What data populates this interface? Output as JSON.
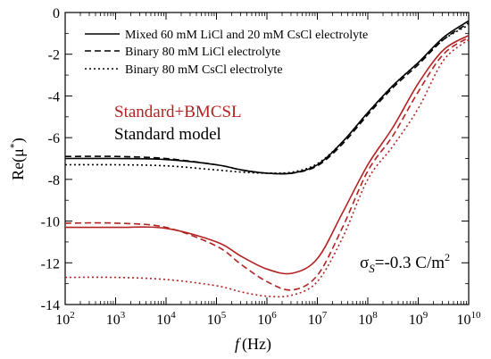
{
  "chart_data": {
    "type": "line",
    "xscale": "log",
    "xlim": [
      100,
      10000000000
    ],
    "ylim": [
      -14,
      0
    ],
    "grid": false,
    "legend_position": "top-left",
    "xlabel_f": "f",
    "xlabel_unit": "(Hz)",
    "ylabel_main": "Re(μ",
    "ylabel_sup": "*",
    "ylabel_close": ")",
    "x_ticks": [
      {
        "base": "10",
        "exp": "2",
        "value": 100
      },
      {
        "base": "10",
        "exp": "3",
        "value": 1000
      },
      {
        "base": "10",
        "exp": "4",
        "value": 10000
      },
      {
        "base": "10",
        "exp": "5",
        "value": 100000
      },
      {
        "base": "10",
        "exp": "6",
        "value": 1000000
      },
      {
        "base": "10",
        "exp": "7",
        "value": 10000000
      },
      {
        "base": "10",
        "exp": "8",
        "value": 100000000
      },
      {
        "base": "10",
        "exp": "9",
        "value": 1000000000
      },
      {
        "base": "10",
        "exp": "10",
        "value": 10000000000
      }
    ],
    "y_ticks": [
      {
        "label": "0",
        "value": 0
      },
      {
        "label": "-2",
        "value": -2
      },
      {
        "label": "-4",
        "value": -4
      },
      {
        "label": "-6",
        "value": -6
      },
      {
        "label": "-8",
        "value": -8
      },
      {
        "label": "-10",
        "value": -10
      },
      {
        "label": "-12",
        "value": -12
      },
      {
        "label": "-14",
        "value": -14
      }
    ],
    "legend": [
      {
        "text": "Mixed 60 mM LiCl and 20 mM CsCl electrolyte",
        "dash": "solid"
      },
      {
        "text": "Binary 80 mM LiCl electrolyte",
        "dash": "dashed"
      },
      {
        "text": "Binary 80 mM CsCl electrolyte",
        "dash": "dotted"
      }
    ],
    "annotations": {
      "red_label": "Standard+BMCSL",
      "black_label": "Standard model",
      "sigma_symbol": "σ",
      "sigma_sub": "S",
      "sigma_value": "=-0.3 C/m",
      "sigma_sup": "2"
    },
    "colors": {
      "standard": "#000000",
      "bmcsl": "#b22222"
    },
    "series": [
      {
        "group": "Standard model",
        "electrolyte": "Mixed 60 mM LiCl and 20 mM CsCl electrolyte",
        "dash": "solid",
        "color": "#000000",
        "x": [
          100,
          1000,
          10000,
          100000,
          316000,
          1000000,
          3160000,
          10000000,
          31600000,
          100000000,
          316000000,
          1000000000,
          3160000000,
          10000000000
        ],
        "y": [
          -7.0,
          -7.0,
          -7.05,
          -7.3,
          -7.55,
          -7.7,
          -7.7,
          -7.3,
          -6.2,
          -4.8,
          -3.5,
          -2.4,
          -1.2,
          -0.4
        ]
      },
      {
        "group": "Standard model",
        "electrolyte": "Binary 80 mM LiCl electrolyte",
        "dash": "dashed",
        "color": "#000000",
        "x": [
          100,
          1000,
          10000,
          100000,
          316000,
          1000000,
          3160000,
          10000000,
          31600000,
          100000000,
          316000000,
          1000000000,
          3160000000,
          10000000000
        ],
        "y": [
          -6.9,
          -6.9,
          -7.0,
          -7.3,
          -7.55,
          -7.7,
          -7.7,
          -7.35,
          -6.3,
          -4.9,
          -3.6,
          -2.5,
          -1.3,
          -0.5
        ]
      },
      {
        "group": "Standard model",
        "electrolyte": "Binary 80 mM CsCl electrolyte",
        "dash": "dotted",
        "color": "#000000",
        "x": [
          100,
          1000,
          10000,
          100000,
          316000,
          1000000,
          3160000,
          10000000,
          31600000,
          100000000,
          316000000,
          1000000000,
          3160000000,
          10000000000
        ],
        "y": [
          -7.3,
          -7.3,
          -7.35,
          -7.55,
          -7.65,
          -7.7,
          -7.65,
          -7.25,
          -6.2,
          -4.8,
          -3.5,
          -2.4,
          -1.3,
          -0.6
        ]
      },
      {
        "group": "Standard+BMCSL",
        "electrolyte": "Mixed 60 mM LiCl and 20 mM CsCl electrolyte",
        "dash": "solid",
        "color": "#b22222",
        "x": [
          100,
          1000,
          10000,
          100000,
          316000,
          1000000,
          3160000,
          10000000,
          31600000,
          100000000,
          316000000,
          1000000000,
          3160000000,
          10000000000
        ],
        "y": [
          -10.3,
          -10.3,
          -10.35,
          -11.0,
          -11.7,
          -12.3,
          -12.5,
          -11.8,
          -9.6,
          -7.3,
          -5.5,
          -3.4,
          -1.8,
          -1.1
        ]
      },
      {
        "group": "Standard+BMCSL",
        "electrolyte": "Binary 80 mM LiCl electrolyte",
        "dash": "dashed",
        "color": "#b22222",
        "x": [
          100,
          1000,
          10000,
          100000,
          316000,
          1000000,
          3160000,
          10000000,
          31600000,
          100000000,
          316000000,
          1000000000,
          3160000000,
          10000000000
        ],
        "y": [
          -10.1,
          -10.1,
          -10.3,
          -11.2,
          -12.1,
          -12.9,
          -13.3,
          -12.6,
          -10.3,
          -7.6,
          -5.9,
          -3.8,
          -2.0,
          -1.2
        ]
      },
      {
        "group": "Standard+BMCSL",
        "electrolyte": "Binary 80 mM CsCl electrolyte",
        "dash": "dotted",
        "color": "#b22222",
        "x": [
          100,
          1000,
          10000,
          100000,
          316000,
          1000000,
          3160000,
          10000000,
          31600000,
          100000000,
          316000000,
          1000000000,
          3160000000,
          10000000000
        ],
        "y": [
          -12.7,
          -12.7,
          -12.8,
          -13.1,
          -13.4,
          -13.6,
          -13.55,
          -12.9,
          -10.8,
          -8.0,
          -6.4,
          -4.6,
          -2.3,
          -1.3
        ]
      }
    ]
  }
}
